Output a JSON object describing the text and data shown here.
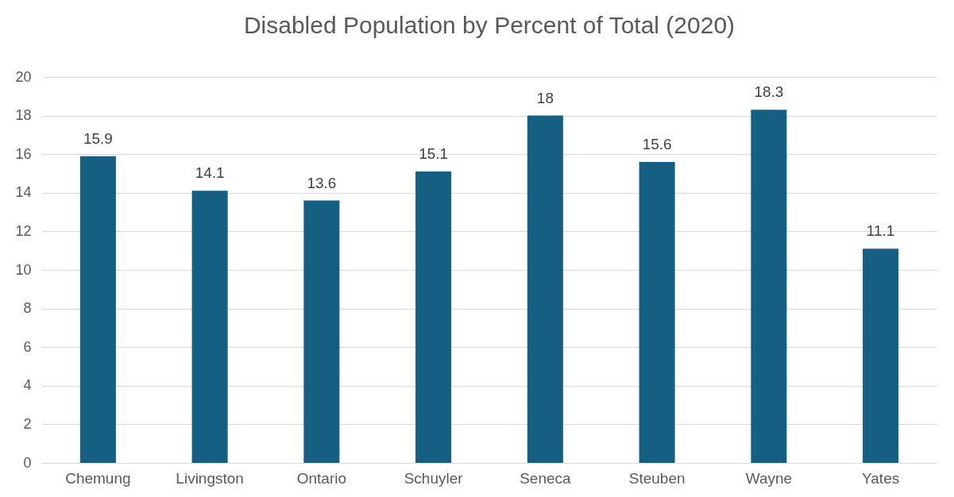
{
  "chart_data": {
    "type": "bar",
    "title": "Disabled Population by Percent of Total (2020)",
    "categories": [
      "Chemung",
      "Livingston",
      "Ontario",
      "Schuyler",
      "Seneca",
      "Steuben",
      "Wayne",
      "Yates"
    ],
    "values": [
      15.9,
      14.1,
      13.6,
      15.1,
      18,
      15.6,
      18.3,
      11.1
    ],
    "color": "#156082",
    "ylim": [
      0,
      20
    ],
    "yticks": [
      0,
      2,
      4,
      6,
      8,
      10,
      12,
      14,
      16,
      18,
      20
    ],
    "grid": "y",
    "data_labels": true
  }
}
